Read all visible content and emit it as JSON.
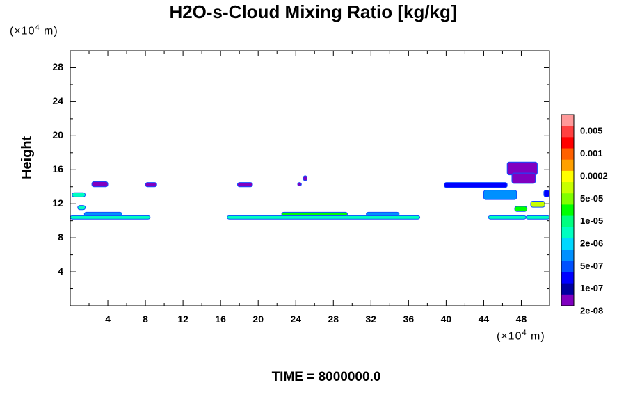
{
  "chart_data": {
    "type": "heatmap",
    "title": "H2O-s-Cloud Mixing Ratio [kg/kg]",
    "xlabel": "",
    "ylabel": "Height",
    "x_unit_label": "(×10",
    "x_unit_exp": "4",
    "x_unit_suffix": " m)",
    "y_unit_label": "(×10",
    "y_unit_exp": "4",
    "y_unit_suffix": " m)",
    "footer": "TIME = 8000000.0",
    "xlim": [
      0,
      51
    ],
    "ylim": [
      0,
      30
    ],
    "x_ticks": [
      "4",
      "8",
      "12",
      "16",
      "20",
      "24",
      "28",
      "32",
      "36",
      "40",
      "44",
      "48"
    ],
    "y_ticks": [
      "4",
      "8",
      "12",
      "16",
      "20",
      "24",
      "28"
    ],
    "colorbar": {
      "labels": [
        "0.005",
        "0.001",
        "0.0002",
        "5e-05",
        "1e-05",
        "2e-06",
        "5e-07",
        "1e-07",
        "2e-08"
      ],
      "colors": [
        "#ff9999",
        "#ff4040",
        "#ff0000",
        "#ff6000",
        "#ffa000",
        "#ffff00",
        "#c8ff00",
        "#80ff00",
        "#00ff00",
        "#00ff80",
        "#00ffc0",
        "#00d8ff",
        "#0090ff",
        "#0050ff",
        "#0000ff",
        "#0000a0",
        "#8000c0"
      ]
    },
    "cloud_regions": [
      {
        "x": [
          0,
          8.5
        ],
        "y": [
          10.2,
          10.6
        ],
        "level": "1e-05"
      },
      {
        "x": [
          1.5,
          5.5
        ],
        "y": [
          10.6,
          11.0
        ],
        "level": "2e-06"
      },
      {
        "x": [
          16.7,
          37.2
        ],
        "y": [
          10.2,
          10.6
        ],
        "level": "1e-05"
      },
      {
        "x": [
          22.5,
          29.5
        ],
        "y": [
          10.6,
          11.0
        ],
        "level": "5e-05"
      },
      {
        "x": [
          31.5,
          35
        ],
        "y": [
          10.6,
          11.0
        ],
        "level": "2e-06"
      },
      {
        "x": [
          2.3,
          4.0
        ],
        "y": [
          14.0,
          14.6
        ],
        "level": "1e-07"
      },
      {
        "x": [
          8.0,
          9.2
        ],
        "y": [
          14.0,
          14.5
        ],
        "level": "1e-07"
      },
      {
        "x": [
          17.8,
          19.4
        ],
        "y": [
          14.0,
          14.5
        ],
        "level": "1e-07"
      },
      {
        "x": [
          39.8,
          46.5
        ],
        "y": [
          13.9,
          14.5
        ],
        "level": "5e-07"
      },
      {
        "x": [
          44.0,
          47.5
        ],
        "y": [
          12.5,
          13.6
        ],
        "level": "2e-06"
      },
      {
        "x": [
          44.5,
          48.5
        ],
        "y": [
          10.2,
          10.6
        ],
        "level": "1e-05"
      },
      {
        "x": [
          46.5,
          49.7
        ],
        "y": [
          15.4,
          16.9
        ],
        "level": "2e-08"
      },
      {
        "x": [
          47.0,
          49.5
        ],
        "y": [
          14.4,
          15.6
        ],
        "level": "1e-07"
      },
      {
        "x": [
          0.2,
          1.6
        ],
        "y": [
          12.8,
          13.3
        ],
        "level": "1e-05"
      },
      {
        "x": [
          0.8,
          1.6
        ],
        "y": [
          11.3,
          11.8
        ],
        "level": "1e-05"
      },
      {
        "x": [
          47.3,
          48.6
        ],
        "y": [
          11.1,
          11.7
        ],
        "level": "5e-05"
      },
      {
        "x": [
          49.0,
          50.5
        ],
        "y": [
          11.6,
          12.3
        ],
        "level": "0.0002"
      },
      {
        "x": [
          48.5,
          51.0
        ],
        "y": [
          10.2,
          10.6
        ],
        "level": "1e-05"
      },
      {
        "x": [
          24.8,
          25.2
        ],
        "y": [
          14.7,
          15.3
        ],
        "level": "1e-07"
      },
      {
        "x": [
          24.2,
          24.6
        ],
        "y": [
          14.1,
          14.5
        ],
        "level": "1e-07"
      },
      {
        "x": [
          50.4,
          51.0
        ],
        "y": [
          12.8,
          13.6
        ],
        "level": "5e-07"
      }
    ]
  }
}
